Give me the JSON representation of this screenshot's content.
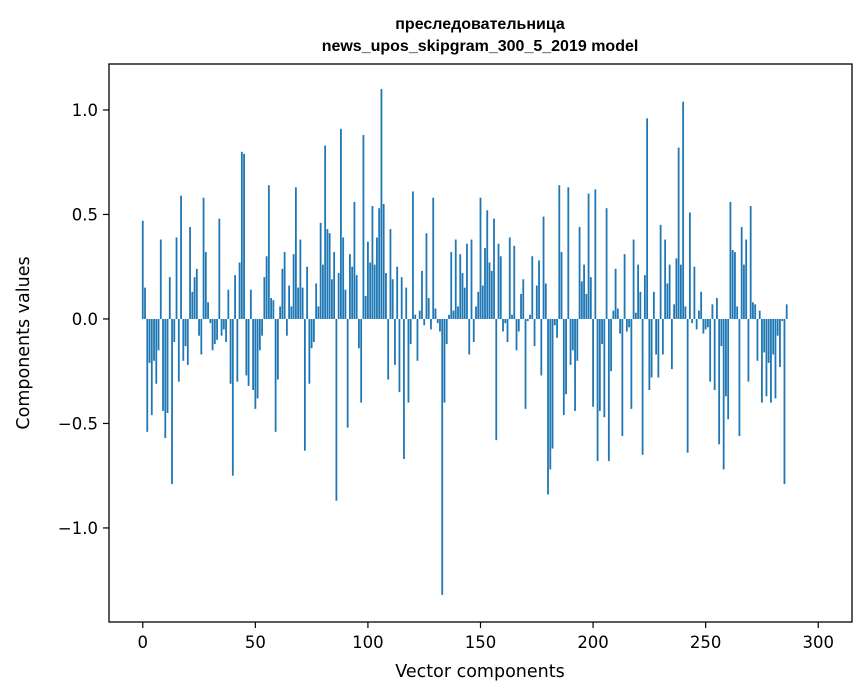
{
  "chart_data": {
    "type": "bar",
    "title_line1": "преследовательница",
    "title_line2": "news_upos_skipgram_300_5_2019 model",
    "xlabel": "Vector components",
    "ylabel": "Components values",
    "xlim": [
      -15,
      315
    ],
    "ylim": [
      -1.45,
      1.22
    ],
    "xticks": [
      {
        "value": 0,
        "label": "0"
      },
      {
        "value": 50,
        "label": "50"
      },
      {
        "value": 100,
        "label": "100"
      },
      {
        "value": 150,
        "label": "150"
      },
      {
        "value": 200,
        "label": "200"
      },
      {
        "value": 250,
        "label": "250"
      },
      {
        "value": 300,
        "label": "300"
      }
    ],
    "yticks": [
      {
        "value": 1.0,
        "label": "1.0"
      },
      {
        "value": 0.5,
        "label": "0.5"
      },
      {
        "value": 0.0,
        "label": "0.0"
      },
      {
        "value": -0.5,
        "label": "−0.5"
      },
      {
        "value": -1.0,
        "label": "−1.0"
      }
    ],
    "bar_color": "#1f77b4",
    "values": [
      0.47,
      0.15,
      -0.54,
      -0.21,
      -0.46,
      -0.2,
      -0.31,
      -0.15,
      0.38,
      -0.44,
      -0.57,
      -0.45,
      0.2,
      -0.79,
      -0.11,
      0.39,
      -0.3,
      0.59,
      -0.2,
      -0.13,
      -0.22,
      0.44,
      0.13,
      0.2,
      0.24,
      -0.08,
      -0.17,
      0.58,
      0.32,
      0.08,
      -0.02,
      -0.15,
      -0.12,
      -0.1,
      0.48,
      -0.08,
      -0.05,
      -0.11,
      0.14,
      -0.31,
      -0.75,
      0.21,
      -0.3,
      0.27,
      0.8,
      0.79,
      -0.27,
      -0.32,
      0.14,
      -0.34,
      -0.43,
      -0.38,
      -0.15,
      -0.08,
      0.2,
      0.3,
      0.64,
      0.1,
      0.09,
      -0.54,
      -0.29,
      0.06,
      0.24,
      0.32,
      -0.08,
      0.16,
      0.06,
      0.31,
      0.63,
      0.15,
      0.38,
      0.15,
      -0.63,
      0.25,
      -0.31,
      -0.14,
      -0.11,
      0.17,
      0.06,
      0.46,
      0.26,
      0.83,
      0.43,
      0.41,
      0.19,
      0.32,
      -0.87,
      0.22,
      0.91,
      0.39,
      0.14,
      -0.52,
      0.31,
      0.25,
      0.56,
      0.21,
      -0.14,
      -0.4,
      0.88,
      0.11,
      0.37,
      0.27,
      0.54,
      0.26,
      0.39,
      0.53,
      1.1,
      0.55,
      0.22,
      -0.29,
      0.43,
      0.19,
      -0.22,
      0.25,
      -0.35,
      0.2,
      -0.67,
      0.15,
      -0.4,
      -0.12,
      0.61,
      0.02,
      -0.2,
      0.04,
      0.23,
      -0.03,
      0.41,
      0.1,
      -0.05,
      0.58,
      0.05,
      -0.02,
      -0.06,
      -1.32,
      -0.4,
      -0.12,
      0.02,
      0.32,
      0.04,
      0.38,
      0.06,
      0.31,
      0.22,
      0.15,
      0.36,
      -0.17,
      0.38,
      -0.11,
      0.06,
      0.13,
      0.58,
      0.16,
      0.34,
      0.52,
      0.27,
      0.23,
      0.48,
      -0.58,
      0.36,
      0.3,
      -0.06,
      -0.02,
      -0.11,
      0.39,
      0.02,
      0.35,
      -0.15,
      -0.06,
      0.12,
      0.19,
      -0.43,
      -0.01,
      0.02,
      0.3,
      -0.13,
      0.16,
      0.28,
      -0.27,
      0.49,
      0.17,
      -0.84,
      -0.72,
      -0.62,
      -0.03,
      -0.09,
      0.64,
      0.32,
      -0.46,
      -0.36,
      0.63,
      -0.22,
      -0.15,
      -0.44,
      -0.2,
      0.44,
      0.18,
      0.26,
      0.12,
      0.6,
      0.2,
      -0.42,
      0.62,
      -0.68,
      -0.44,
      -0.12,
      -0.47,
      0.53,
      -0.68,
      -0.25,
      0.04,
      0.24,
      0.05,
      -0.07,
      -0.56,
      0.31,
      -0.06,
      -0.04,
      -0.43,
      0.38,
      0.03,
      0.26,
      0.13,
      -0.65,
      0.21,
      0.96,
      -0.34,
      -0.28,
      0.13,
      -0.17,
      -0.28,
      0.45,
      -0.17,
      0.38,
      0.17,
      0.26,
      -0.24,
      0.07,
      0.29,
      0.82,
      0.26,
      1.04,
      0.06,
      -0.64,
      0.51,
      -0.02,
      0.25,
      -0.05,
      0.04,
      0.13,
      -0.07,
      -0.05,
      -0.04,
      -0.3,
      0.07,
      -0.34,
      0.1,
      -0.6,
      -0.13,
      -0.72,
      -0.37,
      -0.48,
      0.56,
      0.33,
      0.32,
      0.06,
      -0.56,
      0.44,
      0.26,
      0.38,
      -0.3,
      0.54,
      0.08,
      0.07,
      -0.2,
      0.04,
      -0.4,
      -0.16,
      -0.37,
      -0.21,
      -0.4,
      -0.17,
      -0.38,
      -0.08,
      -0.23,
      -0.01,
      -0.79,
      0.07
    ]
  }
}
